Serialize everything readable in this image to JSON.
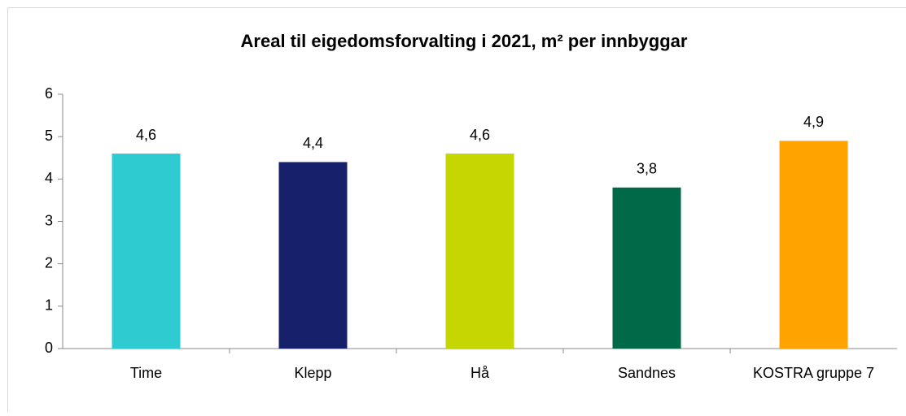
{
  "chart_data": {
    "type": "bar",
    "title": "Areal til eigedomsforvalting i 2021, m² per innbyggar",
    "categories": [
      "Time",
      "Klepp",
      "Hå",
      "Sandnes",
      "KOSTRA gruppe 7"
    ],
    "values": [
      4.6,
      4.4,
      4.6,
      3.8,
      4.9
    ],
    "value_labels": [
      "4,6",
      "4,4",
      "4,6",
      "3,8",
      "4,9"
    ],
    "colors": [
      "#2ecbd1",
      "#17206b",
      "#c5d600",
      "#006a48",
      "#ffa300"
    ],
    "ylim": [
      0,
      6
    ],
    "yticks": [
      0,
      1,
      2,
      3,
      4,
      5,
      6
    ],
    "grid": false
  }
}
